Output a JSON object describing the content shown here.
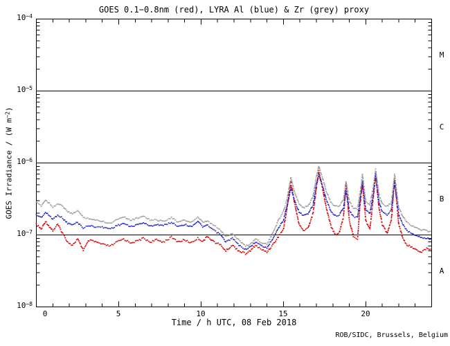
{
  "figure": {
    "credit": "ROB/SIDC, Brussels, Belgium"
  },
  "chart_data": {
    "type": "scatter",
    "title": "GOES 0.1−0.8nm (red), LYRA Al (blue) & Zr (grey) proxy",
    "xlabel": "Time / h UTC, 08 Feb 2018",
    "ylabel": {
      "prefix": "GOES Irradiance / (W m",
      "sup_exponent": "−2",
      "suffix": ")"
    },
    "x_range": [
      0,
      24
    ],
    "x_major_ticks": [
      0,
      5,
      10,
      15,
      20
    ],
    "x_minor_step": 1,
    "y_scale": "log",
    "y_decade_exponents": [
      -4,
      -5,
      -6,
      -7,
      -8
    ],
    "y_range": [
      1e-08,
      0.0001
    ],
    "grid": "off",
    "class_boundary_lines": [
      1e-05,
      1e-06,
      1e-07
    ],
    "flare_classes": [
      {
        "label": "M",
        "log_center": -4.5
      },
      {
        "label": "C",
        "log_center": -5.5
      },
      {
        "label": "B",
        "log_center": -6.5
      },
      {
        "label": "A",
        "log_center": -7.5
      }
    ],
    "value_unit": "W m^-2",
    "value_scale": 1e-07,
    "series": [
      {
        "name": "GOES 0.1-0.8nm",
        "color": "#dd0000",
        "style": "dotted",
        "points": [
          [
            0,
            1.4
          ],
          [
            0.3,
            1.2
          ],
          [
            0.55,
            1.55
          ],
          [
            0.8,
            1.3
          ],
          [
            1,
            1.15
          ],
          [
            1.3,
            1.4
          ],
          [
            1.6,
            1.05
          ],
          [
            1.9,
            0.8
          ],
          [
            2.2,
            0.72
          ],
          [
            2.5,
            0.88
          ],
          [
            2.85,
            0.62
          ],
          [
            3.2,
            0.84
          ],
          [
            3.6,
            0.8
          ],
          [
            4,
            0.74
          ],
          [
            4.5,
            0.7
          ],
          [
            4.9,
            0.8
          ],
          [
            5.3,
            0.88
          ],
          [
            5.7,
            0.78
          ],
          [
            6.1,
            0.82
          ],
          [
            6.5,
            0.9
          ],
          [
            6.9,
            0.8
          ],
          [
            7.3,
            0.85
          ],
          [
            7.7,
            0.8
          ],
          [
            8.2,
            0.93
          ],
          [
            8.6,
            0.8
          ],
          [
            9,
            0.85
          ],
          [
            9.4,
            0.78
          ],
          [
            9.8,
            0.9
          ],
          [
            10.1,
            0.82
          ],
          [
            10.4,
            0.95
          ],
          [
            10.8,
            0.8
          ],
          [
            11.2,
            0.72
          ],
          [
            11.5,
            0.6
          ],
          [
            11.9,
            0.72
          ],
          [
            12.3,
            0.6
          ],
          [
            12.7,
            0.55
          ],
          [
            13,
            0.6
          ],
          [
            13.3,
            0.72
          ],
          [
            13.7,
            0.62
          ],
          [
            14,
            0.58
          ],
          [
            14.3,
            0.7
          ],
          [
            14.7,
            0.95
          ],
          [
            15,
            1.2
          ],
          [
            15.2,
            2.2
          ],
          [
            15.45,
            5.5
          ],
          [
            15.7,
            2.6
          ],
          [
            15.95,
            1.4
          ],
          [
            16.2,
            1.15
          ],
          [
            16.5,
            1.25
          ],
          [
            16.8,
            2
          ],
          [
            17,
            4.5
          ],
          [
            17.15,
            7.8
          ],
          [
            17.35,
            4.8
          ],
          [
            17.6,
            2.4
          ],
          [
            17.9,
            1.3
          ],
          [
            18.15,
            1
          ],
          [
            18.4,
            1.1
          ],
          [
            18.65,
            1.8
          ],
          [
            18.8,
            5.2
          ],
          [
            19,
            1.6
          ],
          [
            19.25,
            0.95
          ],
          [
            19.5,
            0.88
          ],
          [
            19.65,
            2.6
          ],
          [
            19.8,
            5.2
          ],
          [
            20,
            1.6
          ],
          [
            20.25,
            1.2
          ],
          [
            20.45,
            3.2
          ],
          [
            20.6,
            6.4
          ],
          [
            20.8,
            2.4
          ],
          [
            21,
            1.4
          ],
          [
            21.3,
            1.05
          ],
          [
            21.55,
            1.6
          ],
          [
            21.75,
            6
          ],
          [
            22,
            1.4
          ],
          [
            22.25,
            0.9
          ],
          [
            22.5,
            0.72
          ],
          [
            22.8,
            0.68
          ],
          [
            23.1,
            0.62
          ],
          [
            23.4,
            0.58
          ],
          [
            23.7,
            0.65
          ],
          [
            24,
            0.63
          ]
        ]
      },
      {
        "name": "LYRA Al proxy",
        "color": "#2222cc",
        "style": "dotted",
        "points": [
          [
            0,
            1.9
          ],
          [
            0.3,
            1.75
          ],
          [
            0.55,
            2.05
          ],
          [
            0.8,
            1.85
          ],
          [
            1,
            1.65
          ],
          [
            1.3,
            1.9
          ],
          [
            1.6,
            1.7
          ],
          [
            1.9,
            1.45
          ],
          [
            2.2,
            1.38
          ],
          [
            2.5,
            1.5
          ],
          [
            2.85,
            1.25
          ],
          [
            3.2,
            1.35
          ],
          [
            3.6,
            1.3
          ],
          [
            4,
            1.28
          ],
          [
            4.5,
            1.22
          ],
          [
            4.9,
            1.35
          ],
          [
            5.3,
            1.45
          ],
          [
            5.7,
            1.3
          ],
          [
            6.1,
            1.38
          ],
          [
            6.5,
            1.48
          ],
          [
            6.9,
            1.32
          ],
          [
            7.3,
            1.4
          ],
          [
            7.7,
            1.35
          ],
          [
            8.2,
            1.5
          ],
          [
            8.6,
            1.32
          ],
          [
            9,
            1.4
          ],
          [
            9.4,
            1.3
          ],
          [
            9.8,
            1.55
          ],
          [
            10.1,
            1.3
          ],
          [
            10.4,
            1.35
          ],
          [
            10.8,
            1.15
          ],
          [
            11.2,
            1
          ],
          [
            11.5,
            0.8
          ],
          [
            11.9,
            0.9
          ],
          [
            12.3,
            0.72
          ],
          [
            12.7,
            0.63
          ],
          [
            13,
            0.68
          ],
          [
            13.3,
            0.8
          ],
          [
            13.7,
            0.7
          ],
          [
            14,
            0.66
          ],
          [
            14.3,
            0.85
          ],
          [
            14.7,
            1.25
          ],
          [
            15,
            1.6
          ],
          [
            15.2,
            2.4
          ],
          [
            15.45,
            4.5
          ],
          [
            15.7,
            2.9
          ],
          [
            15.95,
            2.1
          ],
          [
            16.2,
            1.85
          ],
          [
            16.5,
            1.95
          ],
          [
            16.8,
            2.6
          ],
          [
            17,
            5
          ],
          [
            17.15,
            6.8
          ],
          [
            17.35,
            5
          ],
          [
            17.6,
            3.1
          ],
          [
            17.9,
            2.1
          ],
          [
            18.15,
            1.85
          ],
          [
            18.4,
            1.9
          ],
          [
            18.65,
            2.4
          ],
          [
            18.8,
            4.2
          ],
          [
            19,
            2.2
          ],
          [
            19.25,
            1.8
          ],
          [
            19.5,
            1.75
          ],
          [
            19.65,
            3
          ],
          [
            19.8,
            5.6
          ],
          [
            20,
            2.2
          ],
          [
            20.25,
            2
          ],
          [
            20.45,
            3.6
          ],
          [
            20.6,
            7.2
          ],
          [
            20.8,
            2.9
          ],
          [
            21,
            2.1
          ],
          [
            21.3,
            1.9
          ],
          [
            21.55,
            2.2
          ],
          [
            21.75,
            5.5
          ],
          [
            22,
            1.9
          ],
          [
            22.25,
            1.4
          ],
          [
            22.5,
            1.15
          ],
          [
            22.8,
            1.05
          ],
          [
            23.1,
            0.98
          ],
          [
            23.4,
            0.92
          ],
          [
            23.7,
            0.9
          ],
          [
            24,
            0.88
          ]
        ]
      },
      {
        "name": "LYRA Zr proxy",
        "color": "#999999",
        "style": "dotted",
        "points": [
          [
            0,
            2.8
          ],
          [
            0.3,
            2.55
          ],
          [
            0.55,
            3.05
          ],
          [
            0.8,
            2.75
          ],
          [
            1,
            2.45
          ],
          [
            1.3,
            2.7
          ],
          [
            1.6,
            2.5
          ],
          [
            1.9,
            2.1
          ],
          [
            2.2,
            1.95
          ],
          [
            2.5,
            2.2
          ],
          [
            2.85,
            1.75
          ],
          [
            3.2,
            1.7
          ],
          [
            3.6,
            1.6
          ],
          [
            4,
            1.55
          ],
          [
            4.5,
            1.45
          ],
          [
            4.9,
            1.65
          ],
          [
            5.3,
            1.8
          ],
          [
            5.7,
            1.6
          ],
          [
            6.1,
            1.7
          ],
          [
            6.5,
            1.85
          ],
          [
            6.9,
            1.6
          ],
          [
            7.3,
            1.62
          ],
          [
            7.7,
            1.55
          ],
          [
            8.2,
            1.75
          ],
          [
            8.6,
            1.5
          ],
          [
            9,
            1.6
          ],
          [
            9.4,
            1.5
          ],
          [
            9.8,
            1.75
          ],
          [
            10.1,
            1.5
          ],
          [
            10.4,
            1.55
          ],
          [
            10.8,
            1.35
          ],
          [
            11.2,
            1.15
          ],
          [
            11.5,
            0.95
          ],
          [
            11.9,
            1.05
          ],
          [
            12.3,
            0.85
          ],
          [
            12.7,
            0.7
          ],
          [
            13,
            0.75
          ],
          [
            13.3,
            0.88
          ],
          [
            13.7,
            0.78
          ],
          [
            14,
            0.74
          ],
          [
            14.3,
            1
          ],
          [
            14.7,
            1.6
          ],
          [
            15,
            2.1
          ],
          [
            15.2,
            3
          ],
          [
            15.45,
            6.3
          ],
          [
            15.7,
            3.8
          ],
          [
            15.95,
            2.7
          ],
          [
            16.2,
            2.4
          ],
          [
            16.5,
            2.5
          ],
          [
            16.8,
            3.4
          ],
          [
            17,
            6.5
          ],
          [
            17.15,
            9
          ],
          [
            17.35,
            6.5
          ],
          [
            17.6,
            4.1
          ],
          [
            17.9,
            2.8
          ],
          [
            18.15,
            2.5
          ],
          [
            18.4,
            2.55
          ],
          [
            18.65,
            3.1
          ],
          [
            18.8,
            5.6
          ],
          [
            19,
            2.9
          ],
          [
            19.25,
            2.35
          ],
          [
            19.5,
            2.3
          ],
          [
            19.65,
            3.8
          ],
          [
            19.8,
            6.9
          ],
          [
            20,
            2.9
          ],
          [
            20.25,
            2.6
          ],
          [
            20.45,
            4.6
          ],
          [
            20.6,
            8.1
          ],
          [
            20.8,
            3.7
          ],
          [
            21,
            2.7
          ],
          [
            21.3,
            2.5
          ],
          [
            21.55,
            2.8
          ],
          [
            21.75,
            6.9
          ],
          [
            22,
            2.4
          ],
          [
            22.25,
            1.8
          ],
          [
            22.5,
            1.5
          ],
          [
            22.8,
            1.35
          ],
          [
            23.1,
            1.25
          ],
          [
            23.4,
            1.18
          ],
          [
            23.7,
            1.15
          ],
          [
            24,
            1.1
          ]
        ]
      }
    ]
  }
}
